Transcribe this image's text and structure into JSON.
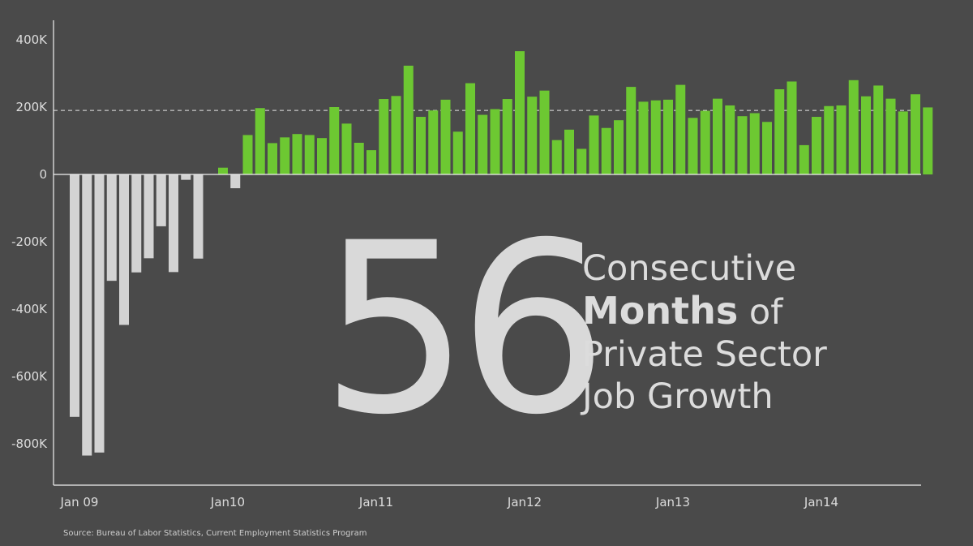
{
  "chart_data": {
    "type": "bar",
    "y_ticks": [
      "400K",
      "200K",
      "0",
      "-200K",
      "-400K",
      "-600K",
      "-800K"
    ],
    "y_tick_values": [
      400,
      200,
      0,
      -200,
      -400,
      -600,
      -800
    ],
    "ylim": [
      -900,
      450
    ],
    "x_ticks": [
      {
        "label": "Jan 09",
        "index": 0
      },
      {
        "label": "Jan10",
        "index": 12
      },
      {
        "label": "Jan11",
        "index": 24
      },
      {
        "label": "Jan12",
        "index": 36
      },
      {
        "label": "Jan13",
        "index": 48
      },
      {
        "label": "Jan14",
        "index": 60
      }
    ],
    "reference_line": 190,
    "colors": {
      "negative": "#d3d3d3",
      "positive": "#6dc832",
      "background": "#4a4a4a",
      "axis": "#e8e8e8"
    },
    "values": [
      -720,
      -835,
      -826,
      -316,
      -447,
      -291,
      -249,
      -154,
      -290,
      -16,
      -250,
      0,
      20,
      -41,
      117,
      197,
      93,
      110,
      120,
      117,
      108,
      200,
      151,
      94,
      72,
      224,
      233,
      323,
      171,
      190,
      222,
      127,
      271,
      177,
      194,
      224,
      366,
      231,
      249,
      102,
      133,
      76,
      175,
      138,
      161,
      260,
      216,
      220,
      222,
      266,
      168,
      189,
      225,
      205,
      173,
      182,
      156,
      253,
      276,
      87,
      171,
      203,
      205,
      280,
      232,
      264,
      225,
      187,
      238,
      199
    ]
  },
  "headline": {
    "number": "56",
    "line1": "Consecutive",
    "line2_bold": "Months",
    "line2_rest": "of",
    "line3": "Private Sector",
    "line4": "Job Growth"
  },
  "source": "Source: Bureau of Labor Statistics, Current Employment Statistics Program"
}
